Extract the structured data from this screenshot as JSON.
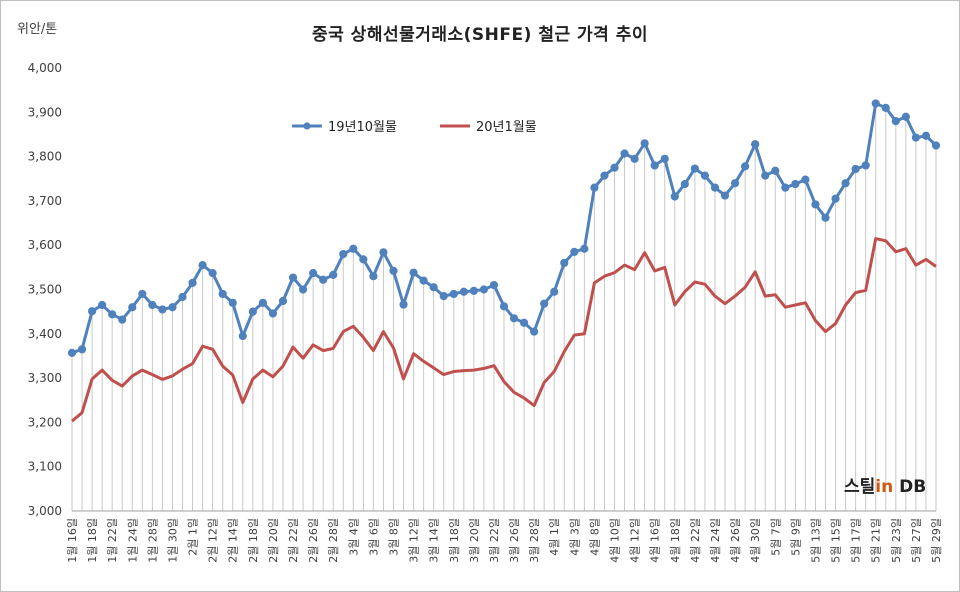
{
  "chart_data": {
    "type": "line",
    "title": "중국 상해선물거래소(SHFE)  철근 가격 추이",
    "ylabel": "위안/톤",
    "ylim": [
      3000,
      4000
    ],
    "yticks": [
      "3,000",
      "3,100",
      "3,200",
      "3,300",
      "3,400",
      "3,500",
      "3,600",
      "3,700",
      "3,800",
      "3,900",
      "4,000"
    ],
    "xlabel": "",
    "grid": "vertical drop lines",
    "legend_position": "top-left",
    "watermark_a": "스틸",
    "watermark_b": "in",
    "watermark_c": " DB",
    "categories": [
      "1월 16일",
      "1월 17일",
      "1월 18일",
      "1월 21일",
      "1월 22일",
      "1월 23일",
      "1월 24일",
      "1월 25일",
      "1월 28일",
      "1월 29일",
      "1월 30일",
      "1월 31일",
      "2월 1일",
      "2월 11일",
      "2월 12일",
      "2월 13일",
      "2월 14일",
      "2월 15일",
      "2월 18일",
      "2월 19일",
      "2월 20일",
      "2월 21일",
      "2월 22일",
      "2월 25일",
      "2월 26일",
      "2월 27일",
      "2월 28일",
      "3월 1일",
      "3월 4일",
      "3월 5일",
      "3월 6일",
      "3월 7일",
      "3월 8일",
      "3월 11일",
      "3월 12일",
      "3월 13일",
      "3월 14일",
      "3월 15일",
      "3월 18일",
      "3월 19일",
      "3월 20일",
      "3월 21일",
      "3월 22일",
      "3월 25일",
      "3월 26일",
      "3월 27일",
      "3월 28일",
      "3월 29일",
      "4월 1일",
      "4월 2일",
      "4월 3일",
      "4월 4일",
      "4월 8일",
      "4월 9일",
      "4월 10일",
      "4월 11일",
      "4월 12일",
      "4월 15일",
      "4월 16일",
      "4월 17일",
      "4월 18일",
      "4월 19일",
      "4월 22일",
      "4월 23일",
      "4월 24일",
      "4월 25일",
      "4월 26일",
      "4월 29일",
      "4월 30일",
      "5월 6일",
      "5월 7일",
      "5월 8일",
      "5월 9일",
      "5월 10일",
      "5월 13일",
      "5월 14일",
      "5월 15일",
      "5월 16일",
      "5월 17일",
      "5월 20일",
      "5월 21일",
      "5월 22일",
      "5월 23일",
      "5월 24일",
      "5월 27일",
      "5월 28일",
      "5월 29일"
    ],
    "x_tick_labels": [
      "1월 16일",
      "1월 18일",
      "1월 22일",
      "1월 24일",
      "1월 28일",
      "1월 30일",
      "2월 1일",
      "2월 12일",
      "2월 14일",
      "2월 18일",
      "2월 20일",
      "2월 22일",
      "2월 26일",
      "2월 28일",
      "3월 4일",
      "3월 6일",
      "3월 8일",
      "3월 12일",
      "3월 14일",
      "3월 18일",
      "3월 20일",
      "3월 22일",
      "3월 26일",
      "3월 28일",
      "4월 1일",
      "4월 3일",
      "4월 8일",
      "4월 10일",
      "4월 12일",
      "4월 16일",
      "4월 18일",
      "4월 22일",
      "4월 24일",
      "4월 26일",
      "4월 30일",
      "5월 7일",
      "5월 9일",
      "5월 13일",
      "5월 15일",
      "5월 17일",
      "5월 21일",
      "5월 23일",
      "5월 27일",
      "5월 29일"
    ],
    "series": [
      {
        "name": "19년10월물",
        "color": "#4f81bd",
        "values": [
          3357,
          3365,
          3451,
          3465,
          3444,
          3432,
          3460,
          3490,
          3465,
          3455,
          3460,
          3483,
          3515,
          3555,
          3537,
          3490,
          3470,
          3395,
          3450,
          3470,
          3446,
          3474,
          3527,
          3500,
          3537,
          3522,
          3533,
          3580,
          3592,
          3568,
          3530,
          3584,
          3542,
          3466,
          3538,
          3520,
          3505,
          3485,
          3490,
          3495,
          3497,
          3500,
          3510,
          3462,
          3435,
          3425,
          3405,
          3468,
          3495,
          3560,
          3585,
          3592,
          3730,
          3757,
          3775,
          3807,
          3795,
          3830,
          3780,
          3795,
          3710,
          3738,
          3773,
          3757,
          3730,
          3712,
          3740,
          3778,
          3828,
          3757,
          3768,
          3730,
          3738,
          3748,
          3692,
          3662,
          3705,
          3740,
          3772,
          3780,
          3920,
          3910,
          3880,
          3890,
          3843,
          3847,
          3825
        ]
      },
      {
        "name": "20년1월물",
        "color": "#c0504d",
        "values": [
          3203,
          3222,
          3298,
          3318,
          3295,
          3282,
          3305,
          3318,
          3308,
          3297,
          3305,
          3320,
          3333,
          3372,
          3365,
          3327,
          3307,
          3245,
          3298,
          3318,
          3303,
          3327,
          3370,
          3345,
          3375,
          3362,
          3367,
          3405,
          3417,
          3392,
          3362,
          3405,
          3368,
          3298,
          3355,
          3338,
          3323,
          3308,
          3315,
          3317,
          3318,
          3322,
          3328,
          3292,
          3268,
          3255,
          3238,
          3290,
          3315,
          3360,
          3397,
          3400,
          3515,
          3530,
          3538,
          3555,
          3545,
          3583,
          3542,
          3550,
          3465,
          3495,
          3517,
          3512,
          3485,
          3468,
          3485,
          3505,
          3540,
          3485,
          3488,
          3460,
          3465,
          3470,
          3430,
          3405,
          3423,
          3465,
          3493,
          3498,
          3615,
          3610,
          3585,
          3592,
          3555,
          3568,
          3552
        ]
      }
    ]
  }
}
